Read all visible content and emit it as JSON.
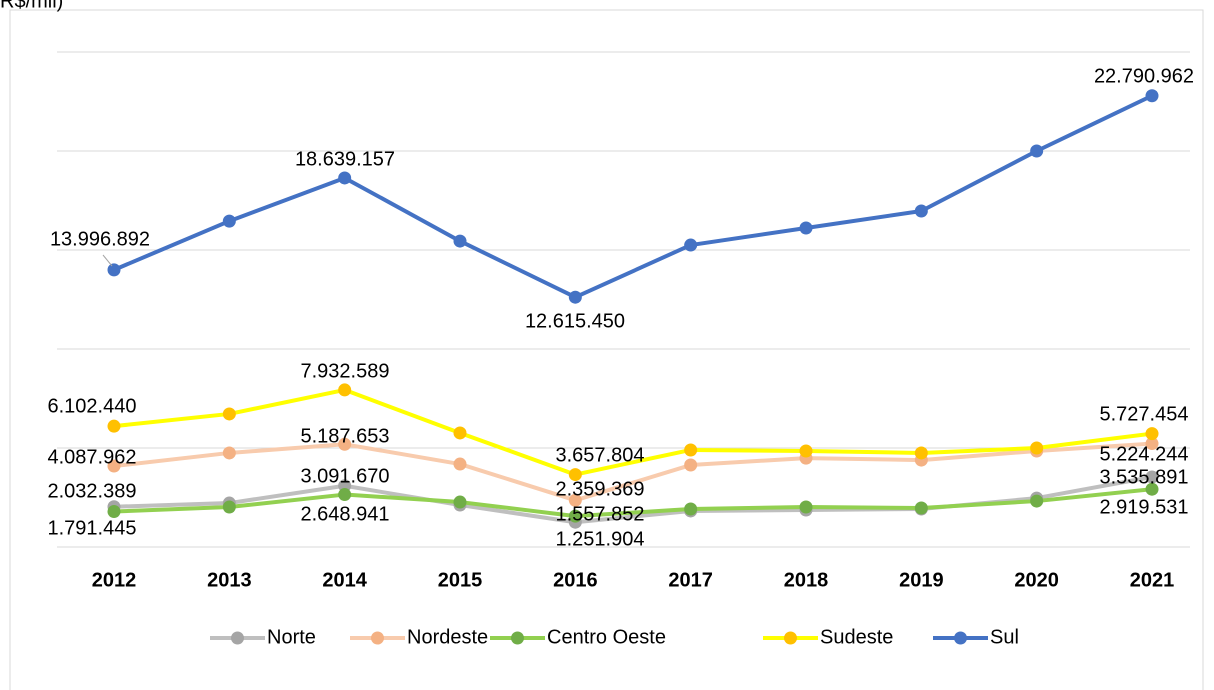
{
  "chart_data": {
    "type": "line",
    "y_axis_label": "R$/mil)",
    "categories": [
      "2012",
      "2013",
      "2014",
      "2015",
      "2016",
      "2017",
      "2018",
      "2019",
      "2020",
      "2021"
    ],
    "ylim": [
      0,
      25000000
    ],
    "yticks": [
      0,
      5000000,
      10000000,
      15000000,
      20000000,
      25000000
    ],
    "grid": true,
    "legend": "bottom",
    "series": [
      {
        "name": "Norte",
        "color": "#bfbfbf",
        "marker_color": "#a5a5a5",
        "values": [
          2032389,
          2220000,
          3091670,
          2120000,
          1251904,
          1820000,
          1870000,
          1920000,
          2470000,
          3535891
        ],
        "value_labels": [
          "2.032.389",
          null,
          "3.091.670",
          null,
          "1.251.904",
          null,
          null,
          null,
          null,
          "3.535.891"
        ]
      },
      {
        "name": "Nordeste",
        "color": "#f8cbad",
        "marker_color": "#f4b183",
        "values": [
          4087962,
          4750000,
          5187653,
          4190000,
          2359369,
          4140000,
          4490000,
          4390000,
          4850000,
          5224244
        ],
        "value_labels": [
          "4.087.962",
          null,
          "5.187.653",
          null,
          "2.359.369",
          null,
          null,
          null,
          null,
          "5.224.244"
        ]
      },
      {
        "name": "Centro Oeste",
        "color": "#92d050",
        "marker_color": "#70ad47",
        "values": [
          1791445,
          2020000,
          2648941,
          2270000,
          1557852,
          1920000,
          2020000,
          1970000,
          2320000,
          2919531
        ],
        "value_labels": [
          "1.791.445",
          null,
          "2.648.941",
          null,
          "1.557.852",
          null,
          null,
          null,
          null,
          "2.919.531"
        ]
      },
      {
        "name": "Sudeste",
        "color": "#ffff00",
        "marker_color": "#ffc000",
        "values": [
          6102440,
          6720000,
          7932589,
          5760000,
          3657804,
          4900000,
          4850000,
          4750000,
          5000000,
          5727454
        ],
        "value_labels": [
          "6.102.440",
          null,
          "7.932.589",
          null,
          "3.657.804",
          null,
          null,
          null,
          null,
          "5.727.454"
        ]
      },
      {
        "name": "Sul",
        "color": "#4472c4",
        "marker_color": "#4472c4",
        "values": [
          13996892,
          16460000,
          18639157,
          15450000,
          12615450,
          15250000,
          16110000,
          16970000,
          20000000,
          22790962
        ],
        "value_labels": [
          "13.996.892",
          null,
          "18.639.157",
          null,
          "12.615.450",
          null,
          null,
          null,
          null,
          "22.790.962"
        ]
      }
    ]
  }
}
